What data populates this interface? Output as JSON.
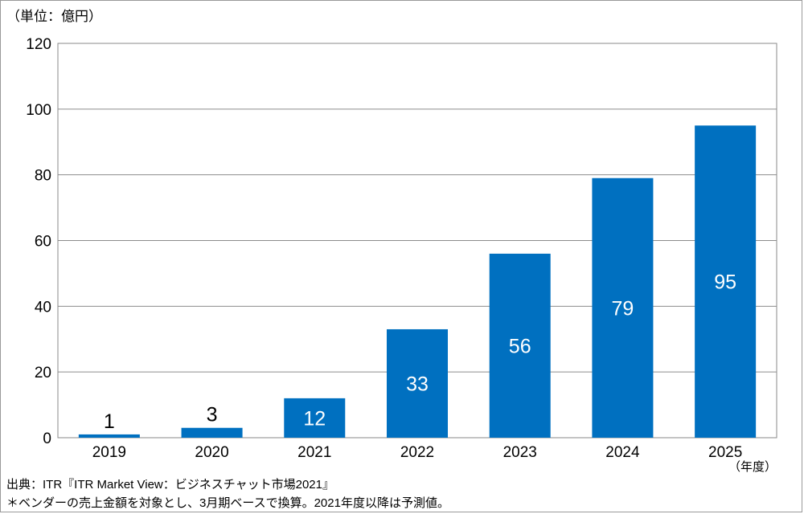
{
  "chart_data": {
    "type": "bar",
    "categories": [
      "2019",
      "2020",
      "2021",
      "2022",
      "2023",
      "2024",
      "2025"
    ],
    "values": [
      1,
      3,
      12,
      33,
      56,
      79,
      95
    ],
    "data_labels": [
      "1",
      "3",
      "12",
      "33",
      "56",
      "79",
      "95"
    ],
    "ylim": [
      0,
      120
    ],
    "yticks": [
      0,
      20,
      40,
      60,
      80,
      100,
      120
    ],
    "y_unit": "（単位：億円）",
    "x_unit": "（年度）",
    "grid": true,
    "bar_color": "#0070C0"
  },
  "footer": {
    "source": "出典：ITR『ITR Market View：ビジネスチャット市場2021』",
    "note": "＊ベンダーの売上金額を対象とし、3月期ベースで換算。2021年度以降は予測値。"
  }
}
